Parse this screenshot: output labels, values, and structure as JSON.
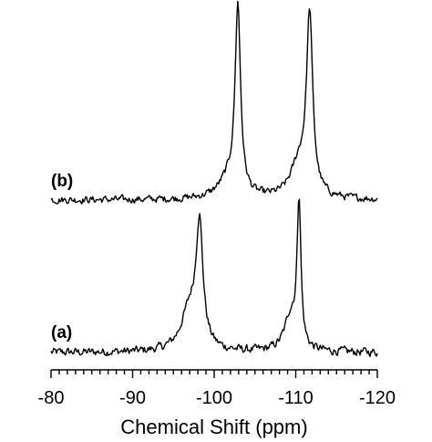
{
  "chart_data": {
    "type": "line",
    "title": "",
    "xlabel": "Chemical Shift (ppm)",
    "ylabel": "",
    "xlim": [
      -80,
      -120
    ],
    "x_reversed": true,
    "x_ticks": [
      -80,
      -90,
      -100,
      -110,
      -120
    ],
    "x_minor_step": 1,
    "y_axis_shown": false,
    "grid": false,
    "series": [
      {
        "name": "(a)",
        "peaks": [
          {
            "x": -98.2,
            "height": 0.82,
            "width": 1.0
          },
          {
            "x": -97.0,
            "height": 0.28,
            "width": 2.5
          },
          {
            "x": -110.4,
            "height": 1.0,
            "width": 0.55
          },
          {
            "x": -109.4,
            "height": 0.25,
            "width": 1.8
          }
        ],
        "baseline_noise": 0.045
      },
      {
        "name": "(b)",
        "peaks": [
          {
            "x": -102.9,
            "height": 1.0,
            "width": 0.8
          },
          {
            "x": -101.8,
            "height": 0.1,
            "width": 3.0
          },
          {
            "x": -111.7,
            "height": 0.95,
            "width": 0.9
          },
          {
            "x": -110.4,
            "height": 0.18,
            "width": 2.5
          }
        ],
        "baseline_noise": 0.03
      }
    ]
  }
}
